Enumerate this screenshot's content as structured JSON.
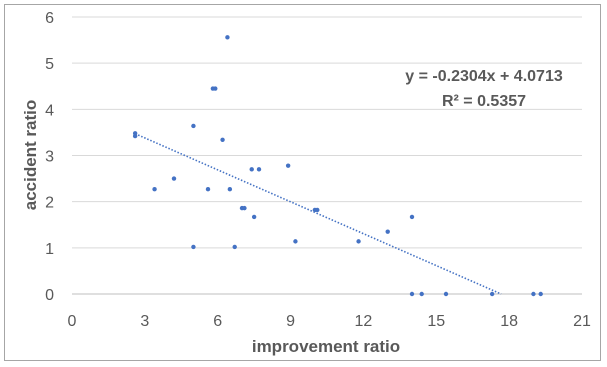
{
  "chart_data": {
    "type": "scatter",
    "xlabel": "improvement ratio",
    "ylabel": "accident ratio",
    "xlim": [
      0,
      21
    ],
    "ylim": [
      0,
      6
    ],
    "xticks": [
      "0",
      "3",
      "6",
      "9",
      "12",
      "15",
      "18",
      "21"
    ],
    "yticks": [
      "0",
      "1",
      "2",
      "3",
      "4",
      "5",
      "6"
    ],
    "grid": "horizontal",
    "point_color": "#4472c4",
    "trendline": {
      "slope": -0.2304,
      "intercept": 4.0713,
      "x_range": [
        2.6,
        17.67
      ],
      "color": "#4472c4",
      "style": "dotted"
    },
    "annotations": [
      "y = -0.2304x + 4.0713",
      "R² = 0.5357"
    ],
    "series": [
      {
        "x": [
          2.6,
          2.6,
          3.4,
          4.2,
          5.0,
          5.0,
          5.6,
          5.8,
          5.9,
          6.2,
          6.4,
          6.5,
          6.7,
          7.0,
          7.1,
          7.4,
          7.5,
          7.7,
          8.9,
          9.2,
          10.0,
          10.1,
          11.8,
          13.0,
          14.0,
          14.0,
          14.4,
          15.4,
          17.3,
          19.0,
          19.3
        ],
        "y": [
          3.42,
          3.48,
          2.27,
          2.5,
          3.64,
          1.02,
          2.27,
          4.45,
          4.45,
          3.34,
          5.56,
          2.27,
          1.02,
          1.86,
          1.86,
          2.7,
          1.67,
          2.7,
          2.78,
          1.14,
          1.82,
          1.82,
          1.14,
          1.35,
          1.67,
          0.0,
          0.0,
          0.0,
          0.0,
          0.0,
          0.0
        ]
      }
    ]
  }
}
